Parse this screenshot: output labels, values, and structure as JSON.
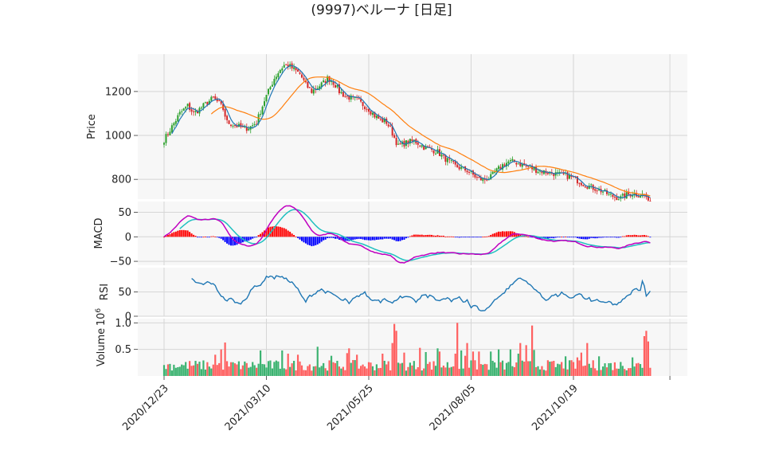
{
  "chart_data": {
    "type": "candlestick",
    "title": "(9997)ベルーナ  [日足]",
    "x_tick_labels": [
      "2020/12/23",
      "2021/03/10",
      "2021/05/25",
      "2021/08/05",
      "2021/10/19"
    ],
    "x_tick_index": [
      0,
      52,
      104,
      156,
      208
    ],
    "panels": {
      "price": {
        "ylabel": "Price",
        "ylim": [
          710,
          1370
        ],
        "yticks": [
          800,
          1000,
          1200
        ],
        "grid": true,
        "close_anchors": [
          [
            0,
            980
          ],
          [
            4,
            1040
          ],
          [
            8,
            1100
          ],
          [
            12,
            1135
          ],
          [
            15,
            1100
          ],
          [
            18,
            1120
          ],
          [
            22,
            1150
          ],
          [
            25,
            1170
          ],
          [
            28,
            1145
          ],
          [
            30,
            1120
          ],
          [
            32,
            1060
          ],
          [
            35,
            1050
          ],
          [
            38,
            1040
          ],
          [
            41,
            1030
          ],
          [
            44,
            1040
          ],
          [
            47,
            1060
          ],
          [
            49,
            1110
          ],
          [
            51,
            1160
          ],
          [
            53,
            1200
          ],
          [
            56,
            1260
          ],
          [
            59,
            1300
          ],
          [
            61,
            1320
          ],
          [
            63,
            1320
          ],
          [
            66,
            1300
          ],
          [
            69,
            1280
          ],
          [
            72,
            1230
          ],
          [
            75,
            1200
          ],
          [
            78,
            1220
          ],
          [
            81,
            1240
          ],
          [
            83,
            1260
          ],
          [
            85,
            1250
          ],
          [
            87,
            1230
          ],
          [
            89,
            1200
          ],
          [
            92,
            1180
          ],
          [
            95,
            1170
          ],
          [
            98,
            1160
          ],
          [
            101,
            1140
          ],
          [
            104,
            1120
          ],
          [
            107,
            1090
          ],
          [
            110,
            1070
          ],
          [
            113,
            1060
          ],
          [
            115,
            1030
          ],
          [
            117,
            990
          ],
          [
            119,
            950
          ],
          [
            121,
            960
          ],
          [
            124,
            970
          ],
          [
            127,
            975
          ],
          [
            130,
            960
          ],
          [
            133,
            940
          ],
          [
            136,
            935
          ],
          [
            139,
            925
          ],
          [
            142,
            900
          ],
          [
            145,
            880
          ],
          [
            148,
            860
          ],
          [
            151,
            850
          ],
          [
            154,
            840
          ],
          [
            157,
            820
          ],
          [
            160,
            800
          ],
          [
            163,
            800
          ],
          [
            166,
            810
          ],
          [
            169,
            840
          ],
          [
            172,
            865
          ],
          [
            175,
            880
          ],
          [
            178,
            880
          ],
          [
            181,
            870
          ],
          [
            184,
            860
          ],
          [
            187,
            850
          ],
          [
            190,
            840
          ],
          [
            193,
            835
          ],
          [
            196,
            830
          ],
          [
            199,
            825
          ],
          [
            202,
            820
          ],
          [
            205,
            815
          ],
          [
            208,
            805
          ],
          [
            211,
            790
          ],
          [
            214,
            775
          ],
          [
            217,
            765
          ],
          [
            220,
            755
          ],
          [
            223,
            745
          ],
          [
            226,
            730
          ],
          [
            229,
            720
          ],
          [
            232,
            715
          ],
          [
            235,
            730
          ],
          [
            238,
            735
          ],
          [
            241,
            730
          ],
          [
            244,
            730
          ],
          [
            245,
            720
          ],
          [
            246,
            690
          ],
          [
            247,
            705
          ]
        ],
        "series": [
          {
            "name": "",
            "color": "#ff7f0e",
            "window": 25
          },
          {
            "name": "",
            "color": "#1f77b4",
            "window": 5
          }
        ],
        "up_color": "#2ca02c",
        "down_color": "#d62728"
      },
      "macd": {
        "ylabel": "MACD",
        "ylim": [
          -58,
          72
        ],
        "yticks": [
          50,
          0,
          -50
        ],
        "macd_color": "#c000c0",
        "signal_color": "#20c0c0",
        "hist_pos_color": "#ff0000",
        "hist_neg_color": "#0000ff"
      },
      "rsi": {
        "ylabel": "RSI",
        "ylim": [
          0,
          100
        ],
        "yticks": [
          50,
          0
        ],
        "color": "#1f77b4",
        "anchors": [
          [
            14,
            76
          ],
          [
            17,
            68
          ],
          [
            20,
            65
          ],
          [
            22,
            70
          ],
          [
            24,
            68
          ],
          [
            26,
            62
          ],
          [
            28,
            48
          ],
          [
            30,
            38
          ],
          [
            32,
            32
          ],
          [
            34,
            36
          ],
          [
            36,
            30
          ],
          [
            38,
            25
          ],
          [
            40,
            30
          ],
          [
            42,
            38
          ],
          [
            44,
            55
          ],
          [
            46,
            60
          ],
          [
            48,
            62
          ],
          [
            50,
            70
          ],
          [
            52,
            80
          ],
          [
            54,
            84
          ],
          [
            56,
            78
          ],
          [
            58,
            84
          ],
          [
            60,
            80
          ],
          [
            62,
            76
          ],
          [
            64,
            72
          ],
          [
            66,
            66
          ],
          [
            68,
            55
          ],
          [
            70,
            40
          ],
          [
            72,
            30
          ],
          [
            74,
            42
          ],
          [
            76,
            45
          ],
          [
            78,
            52
          ],
          [
            80,
            55
          ],
          [
            82,
            50
          ],
          [
            84,
            48
          ],
          [
            86,
            45
          ],
          [
            88,
            40
          ],
          [
            90,
            32
          ],
          [
            92,
            35
          ],
          [
            94,
            25
          ],
          [
            96,
            35
          ],
          [
            98,
            40
          ],
          [
            100,
            45
          ],
          [
            102,
            48
          ],
          [
            104,
            38
          ],
          [
            106,
            32
          ],
          [
            108,
            35
          ],
          [
            110,
            30
          ],
          [
            112,
            38
          ],
          [
            114,
            32
          ],
          [
            116,
            26
          ],
          [
            118,
            34
          ],
          [
            120,
            42
          ],
          [
            122,
            38
          ],
          [
            124,
            40
          ],
          [
            126,
            35
          ],
          [
            128,
            30
          ],
          [
            130,
            36
          ],
          [
            132,
            45
          ],
          [
            134,
            40
          ],
          [
            136,
            42
          ],
          [
            138,
            36
          ],
          [
            140,
            32
          ],
          [
            142,
            34
          ],
          [
            144,
            38
          ],
          [
            146,
            30
          ],
          [
            148,
            35
          ],
          [
            150,
            40
          ],
          [
            152,
            30
          ],
          [
            154,
            34
          ],
          [
            156,
            18
          ],
          [
            158,
            22
          ],
          [
            160,
            15
          ],
          [
            162,
            10
          ],
          [
            164,
            16
          ],
          [
            166,
            22
          ],
          [
            168,
            35
          ],
          [
            170,
            40
          ],
          [
            172,
            45
          ],
          [
            174,
            55
          ],
          [
            176,
            62
          ],
          [
            178,
            70
          ],
          [
            180,
            78
          ],
          [
            182,
            78
          ],
          [
            184,
            70
          ],
          [
            186,
            64
          ],
          [
            188,
            58
          ],
          [
            190,
            50
          ],
          [
            192,
            40
          ],
          [
            194,
            34
          ],
          [
            196,
            38
          ],
          [
            198,
            44
          ],
          [
            200,
            42
          ],
          [
            202,
            48
          ],
          [
            204,
            42
          ],
          [
            206,
            36
          ],
          [
            208,
            40
          ],
          [
            210,
            46
          ],
          [
            212,
            44
          ],
          [
            214,
            34
          ],
          [
            216,
            36
          ],
          [
            218,
            30
          ],
          [
            220,
            34
          ],
          [
            222,
            30
          ],
          [
            224,
            26
          ],
          [
            226,
            30
          ],
          [
            228,
            25
          ],
          [
            230,
            24
          ],
          [
            232,
            28
          ],
          [
            234,
            38
          ],
          [
            236,
            42
          ],
          [
            238,
            52
          ],
          [
            240,
            56
          ],
          [
            242,
            55
          ],
          [
            243,
            72
          ],
          [
            244,
            62
          ],
          [
            245,
            44
          ],
          [
            246,
            48
          ],
          [
            247,
            50
          ]
        ]
      },
      "volume": {
        "ylabel": "Volume",
        "offset_label": "10^6",
        "ylim": [
          0,
          1.08
        ],
        "yticks": [
          1.0,
          0.5
        ],
        "up_color": "#3cb371",
        "down_color": "#ff6060",
        "spikes": [
          [
            26,
            0.4
          ],
          [
            29,
            0.5
          ],
          [
            31,
            0.63
          ],
          [
            49,
            0.48
          ],
          [
            60,
            0.48
          ],
          [
            63,
            0.42
          ],
          [
            68,
            0.4
          ],
          [
            78,
            0.55
          ],
          [
            85,
            0.38
          ],
          [
            93,
            0.43
          ],
          [
            94,
            0.52
          ],
          [
            98,
            0.4
          ],
          [
            111,
            0.42
          ],
          [
            116,
            0.62
          ],
          [
            117,
            0.98
          ],
          [
            118,
            0.85
          ],
          [
            122,
            0.44
          ],
          [
            130,
            0.53
          ],
          [
            133,
            0.45
          ],
          [
            139,
            0.52
          ],
          [
            140,
            0.46
          ],
          [
            148,
            0.42
          ],
          [
            149,
            1.0
          ],
          [
            151,
            0.48
          ],
          [
            153,
            0.38
          ],
          [
            154,
            0.62
          ],
          [
            157,
            0.46
          ],
          [
            160,
            0.46
          ],
          [
            166,
            0.46
          ],
          [
            170,
            0.5
          ],
          [
            176,
            0.5
          ],
          [
            180,
            0.42
          ],
          [
            181,
            0.62
          ],
          [
            184,
            0.58
          ],
          [
            187,
            0.95
          ],
          [
            188,
            0.49
          ],
          [
            204,
            0.37
          ],
          [
            210,
            0.35
          ],
          [
            212,
            0.44
          ],
          [
            215,
            0.62
          ],
          [
            221,
            0.37
          ],
          [
            238,
            0.35
          ],
          [
            244,
            0.75
          ],
          [
            245,
            0.85
          ],
          [
            246,
            0.65
          ]
        ]
      }
    }
  }
}
